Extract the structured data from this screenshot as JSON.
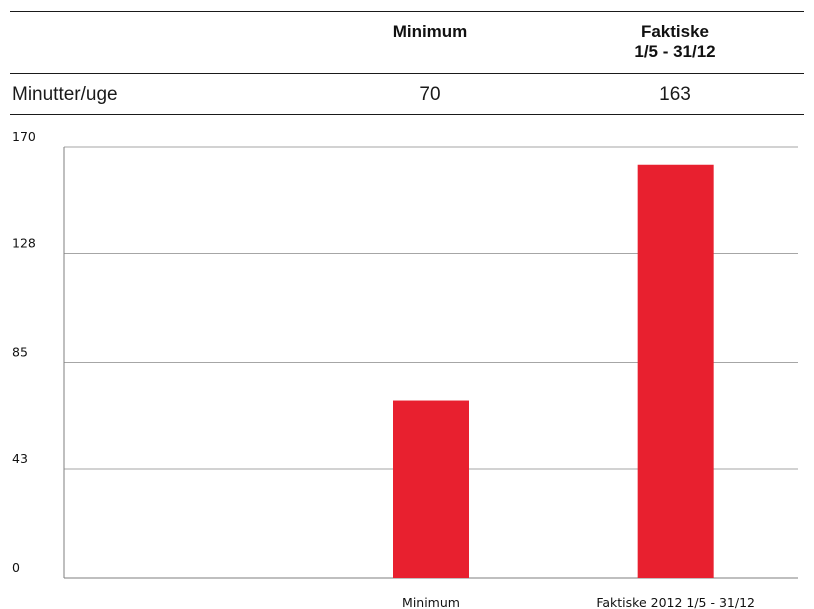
{
  "table": {
    "headers": [
      {
        "lines": [
          "Minimum"
        ]
      },
      {
        "lines": [
          "Faktiske",
          "1/5 - 31/12"
        ]
      }
    ],
    "rows": [
      {
        "label": "Minutter/uge",
        "values": [
          "70",
          "163"
        ]
      }
    ]
  },
  "chart_data": {
    "type": "bar",
    "categories": [
      "",
      "Minimum",
      "Faktiske 2012 1/5 - 31/12"
    ],
    "values": [
      null,
      70,
      163
    ],
    "yticks": [
      "0",
      "43",
      "85",
      "128",
      "170"
    ],
    "ylim": [
      0,
      170
    ],
    "grid": true,
    "bar_color": "#e8202f",
    "grid_color": "#a6a6a6",
    "axis_color": "#7f7f7f"
  }
}
